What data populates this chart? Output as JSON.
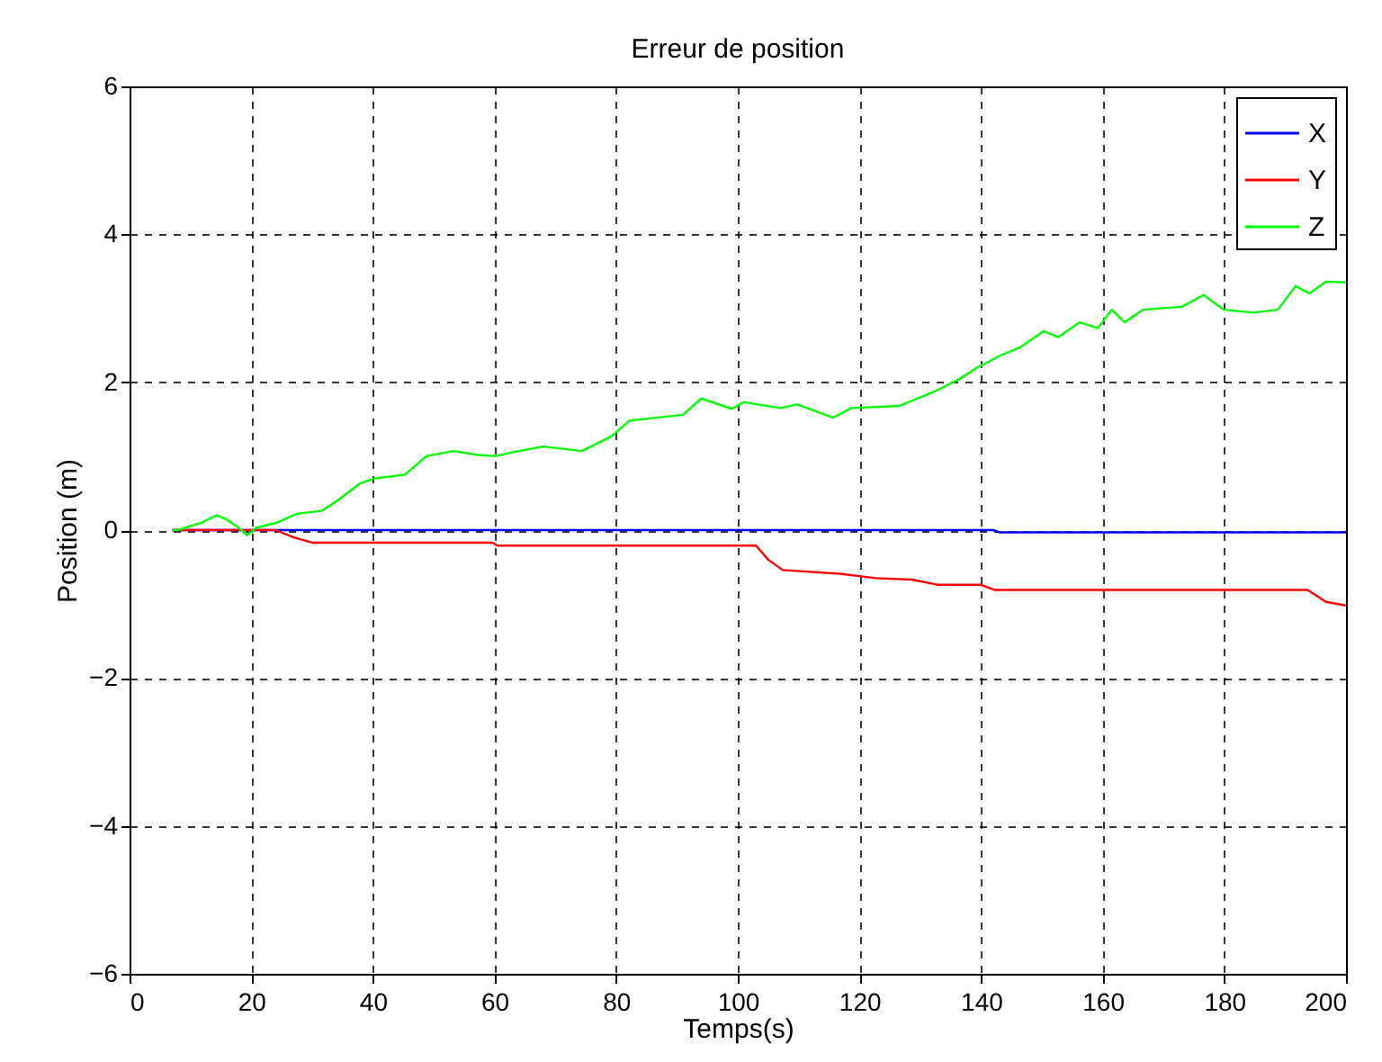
{
  "chart_data": {
    "type": "line",
    "title": "Erreur de position",
    "xlabel": "Temps(s)",
    "ylabel": "Position (m)",
    "xlim": [
      0,
      200
    ],
    "xticks": [
      0,
      20,
      40,
      60,
      80,
      100,
      120,
      140,
      160,
      180,
      200
    ],
    "ylim": [
      -6,
      6
    ],
    "yticks": [
      -6,
      -4,
      -2,
      0,
      2,
      4,
      6
    ],
    "grid": true,
    "legend": "top right",
    "marker": "none",
    "line_style": "solid",
    "series": [
      {
        "name": "X",
        "color": "#0000ff",
        "x": [
          7,
          142,
          143,
          200
        ],
        "values": [
          0,
          0,
          -0.03,
          -0.03
        ]
      },
      {
        "name": "Y",
        "color": "#ff0000",
        "x": [
          7,
          24,
          27,
          30,
          59.7,
          60.5,
          103,
          105,
          107.4,
          116.8,
          122.7,
          128.6,
          133,
          140,
          142.3,
          193.7,
          196.7,
          200
        ],
        "values": [
          0,
          0,
          -0.1,
          -0.17,
          -0.17,
          -0.21,
          -0.21,
          -0.4,
          -0.54,
          -0.59,
          -0.65,
          -0.67,
          -0.74,
          -0.74,
          -0.81,
          -0.81,
          -0.97,
          -1.02
        ]
      },
      {
        "name": "Z",
        "color": "#00ff00",
        "x": [
          7,
          7.9,
          11.8,
          14.3,
          15.8,
          17.7,
          19.3,
          20.8,
          24.2,
          27.5,
          31.6,
          34.5,
          37.9,
          40.4,
          45.3,
          48.8,
          53.3,
          57,
          60,
          64,
          68,
          74.4,
          79.3,
          82.2,
          91,
          94,
          99,
          101,
          107,
          109.8,
          115.7,
          118.7,
          126.6,
          132.5,
          136.4,
          139.4,
          143.4,
          146.4,
          150.3,
          152.7,
          156.2,
          159.2,
          161.5,
          163.6,
          166.6,
          173,
          176.6,
          179.9,
          184.8,
          188.8,
          191.7,
          194,
          196.7,
          200
        ],
        "values": [
          0,
          0,
          0.1,
          0.2,
          0.15,
          0.05,
          -0.07,
          0.03,
          0.1,
          0.22,
          0.26,
          0.42,
          0.63,
          0.7,
          0.75,
          1.0,
          1.07,
          1.02,
          1.0,
          1.07,
          1.13,
          1.07,
          1.27,
          1.48,
          1.56,
          1.78,
          1.64,
          1.73,
          1.65,
          1.7,
          1.52,
          1.65,
          1.68,
          1.88,
          2.04,
          2.2,
          2.37,
          2.47,
          2.69,
          2.61,
          2.81,
          2.73,
          2.98,
          2.81,
          2.98,
          3.02,
          3.18,
          2.98,
          2.94,
          2.98,
          3.3,
          3.2,
          3.36,
          3.35
        ]
      }
    ]
  }
}
